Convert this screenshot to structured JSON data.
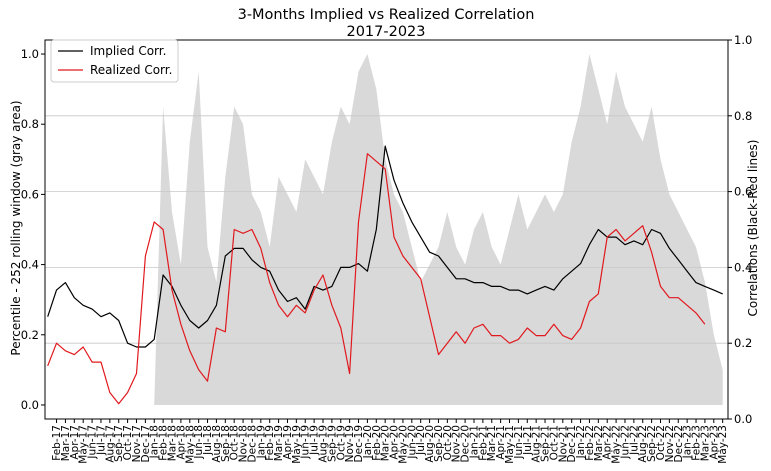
{
  "chart_data": {
    "type": "line",
    "title": "3-Months Implied vs Realized Correlation",
    "subtitle": "2017-2023",
    "ylabel_left": "Percentile - 252 rolling window (gray area)",
    "ylabel_right": "Correlations (Black-Red lines)",
    "ylim_left": [
      -0.04,
      1.04
    ],
    "ylim_right": [
      0.0,
      1.0
    ],
    "yticks_left": [
      "0.0",
      "0.2",
      "0.4",
      "0.6",
      "0.8",
      "1.0"
    ],
    "yticks_right": [
      "0.0",
      "0.2",
      "0.4",
      "0.6",
      "0.8",
      "1.0"
    ],
    "grid": "right-axis horizontal",
    "legend": {
      "placement": "top-left",
      "entries": [
        "Implied Corr.",
        "Realized Corr."
      ]
    },
    "colors": {
      "implied": "#000000",
      "realized": "#e0191e",
      "percentile_area": "#d9d9d9",
      "grid": "#c8c8c8"
    },
    "x_ticks": [
      "Feb-17",
      "Mar-17",
      "Apr-17",
      "May-17",
      "Jun-17",
      "Jul-17",
      "Aug-17",
      "Sep-17",
      "Oct-17",
      "Nov-17",
      "Dec-17",
      "Jan-18",
      "Feb-18",
      "Mar-18",
      "Apr-18",
      "May-18",
      "Jun-18",
      "Jul-18",
      "Aug-18",
      "Sep-18",
      "Oct-18",
      "Nov-18",
      "Dec-18",
      "Jan-19",
      "Feb-19",
      "Mar-19",
      "Apr-19",
      "May-19",
      "Jun-19",
      "Jul-19",
      "Aug-19",
      "Sep-19",
      "Oct-19",
      "Nov-19",
      "Dec-19",
      "Jan-20",
      "Feb-20",
      "Mar-20",
      "Apr-20",
      "May-20",
      "Jun-20",
      "Jul-20",
      "Aug-20",
      "Sep-20",
      "Oct-20",
      "Nov-20",
      "Dec-20",
      "Jan-21",
      "Feb-21",
      "Mar-21",
      "Apr-21",
      "May-21",
      "Jun-21",
      "Jul-21",
      "Aug-21",
      "Sep-21",
      "Oct-21",
      "Nov-21",
      "Dec-21",
      "Jan-22",
      "Feb-22",
      "Mar-22",
      "Apr-22",
      "May-22",
      "Jun-22",
      "Jul-22",
      "Aug-22",
      "Sep-22",
      "Oct-22",
      "Nov-22",
      "Dec-22",
      "Jan-23",
      "Feb-23",
      "Mar-23",
      "Apr-23",
      "May-23"
    ],
    "series": [
      {
        "name": "Implied Corr.",
        "axis": "right",
        "x": [
          "Jan-17",
          "Feb-17",
          "Mar-17",
          "Apr-17",
          "May-17",
          "Jun-17",
          "Jul-17",
          "Aug-17",
          "Sep-17",
          "Oct-17",
          "Nov-17",
          "Dec-17",
          "Jan-18",
          "Feb-18",
          "Mar-18",
          "Apr-18",
          "May-18",
          "Jun-18",
          "Jul-18",
          "Aug-18",
          "Sep-18",
          "Oct-18",
          "Nov-18",
          "Dec-18",
          "Jan-19",
          "Feb-19",
          "Mar-19",
          "Apr-19",
          "May-19",
          "Jun-19",
          "Jul-19",
          "Aug-19",
          "Sep-19",
          "Oct-19",
          "Nov-19",
          "Dec-19",
          "Jan-20",
          "Feb-20",
          "Mar-20",
          "Apr-20",
          "May-20",
          "Jun-20",
          "Jul-20",
          "Aug-20",
          "Sep-20",
          "Oct-20",
          "Nov-20",
          "Dec-20",
          "Jan-21",
          "Feb-21",
          "Mar-21",
          "Apr-21",
          "May-21",
          "Jun-21",
          "Jul-21",
          "Aug-21",
          "Sep-21",
          "Oct-21",
          "Nov-21",
          "Dec-21",
          "Jan-22",
          "Feb-22",
          "Mar-22",
          "Apr-22",
          "May-22",
          "Jun-22",
          "Jul-22",
          "Aug-22",
          "Sep-22",
          "Oct-22",
          "Nov-22",
          "Dec-22",
          "Jan-23",
          "Feb-23",
          "Mar-23",
          "Apr-23",
          "May-23"
        ],
        "values": [
          0.27,
          0.34,
          0.36,
          0.32,
          0.3,
          0.29,
          0.27,
          0.28,
          0.26,
          0.2,
          0.19,
          0.19,
          0.21,
          0.38,
          0.35,
          0.3,
          0.26,
          0.24,
          0.26,
          0.3,
          0.43,
          0.45,
          0.45,
          0.42,
          0.4,
          0.39,
          0.34,
          0.31,
          0.32,
          0.29,
          0.35,
          0.34,
          0.35,
          0.4,
          0.4,
          0.41,
          0.39,
          0.5,
          0.72,
          0.63,
          0.57,
          0.52,
          0.48,
          0.44,
          0.43,
          0.4,
          0.37,
          0.37,
          0.36,
          0.36,
          0.35,
          0.35,
          0.34,
          0.34,
          0.33,
          0.34,
          0.35,
          0.34,
          0.37,
          0.39,
          0.41,
          0.46,
          0.5,
          0.48,
          0.48,
          0.46,
          0.47,
          0.46,
          0.5,
          0.49,
          0.45,
          0.42,
          0.39,
          0.36,
          0.35,
          0.34,
          0.33
        ]
      },
      {
        "name": "Realized Corr.",
        "axis": "right",
        "x": [
          "Jan-17",
          "Feb-17",
          "Mar-17",
          "Apr-17",
          "May-17",
          "Jun-17",
          "Jul-17",
          "Aug-17",
          "Sep-17",
          "Oct-17",
          "Nov-17",
          "Dec-17",
          "Jan-18",
          "Feb-18",
          "Mar-18",
          "Apr-18",
          "May-18",
          "Jun-18",
          "Jul-18",
          "Aug-18",
          "Sep-18",
          "Oct-18",
          "Nov-18",
          "Dec-18",
          "Jan-19",
          "Feb-19",
          "Mar-19",
          "Apr-19",
          "May-19",
          "Jun-19",
          "Jul-19",
          "Aug-19",
          "Sep-19",
          "Oct-19",
          "Nov-19",
          "Dec-19",
          "Jan-20",
          "Feb-20",
          "Mar-20",
          "Apr-20",
          "May-20",
          "Jun-20",
          "Jul-20",
          "Aug-20",
          "Sep-20",
          "Oct-20",
          "Nov-20",
          "Dec-20",
          "Jan-21",
          "Feb-21",
          "Mar-21",
          "Apr-21",
          "May-21",
          "Jun-21",
          "Jul-21",
          "Aug-21",
          "Sep-21",
          "Oct-21",
          "Nov-21",
          "Dec-21",
          "Jan-22",
          "Feb-22",
          "Mar-22",
          "Apr-22",
          "May-22",
          "Jun-22",
          "Jul-22",
          "Aug-22",
          "Sep-22",
          "Oct-22",
          "Nov-22",
          "Dec-22",
          "Jan-23",
          "Feb-23",
          "Mar-23"
        ],
        "values": [
          0.14,
          0.2,
          0.18,
          0.17,
          0.19,
          0.15,
          0.15,
          0.07,
          0.04,
          0.07,
          0.12,
          0.43,
          0.52,
          0.5,
          0.34,
          0.25,
          0.18,
          0.13,
          0.1,
          0.24,
          0.23,
          0.5,
          0.49,
          0.5,
          0.45,
          0.36,
          0.3,
          0.27,
          0.3,
          0.28,
          0.34,
          0.38,
          0.3,
          0.24,
          0.12,
          0.52,
          0.7,
          0.68,
          0.66,
          0.48,
          0.43,
          0.4,
          0.37,
          0.27,
          0.17,
          0.2,
          0.23,
          0.2,
          0.24,
          0.25,
          0.22,
          0.22,
          0.2,
          0.21,
          0.24,
          0.22,
          0.22,
          0.25,
          0.22,
          0.21,
          0.24,
          0.31,
          0.33,
          0.48,
          0.5,
          0.47,
          0.49,
          0.51,
          0.44,
          0.35,
          0.32,
          0.32,
          0.3,
          0.28,
          0.25
        ]
      },
      {
        "name": "",
        "axis": "left",
        "x": [
          "Jan-18",
          "Feb-18",
          "Mar-18",
          "Apr-18",
          "May-18",
          "Jun-18",
          "Jul-18",
          "Aug-18",
          "Sep-18",
          "Oct-18",
          "Nov-18",
          "Dec-18",
          "Jan-19",
          "Feb-19",
          "Mar-19",
          "Apr-19",
          "May-19",
          "Jun-19",
          "Jul-19",
          "Aug-19",
          "Sep-19",
          "Oct-19",
          "Nov-19",
          "Dec-19",
          "Jan-20",
          "Feb-20",
          "Mar-20",
          "Apr-20",
          "May-20",
          "Jun-20",
          "Jul-20",
          "Aug-20",
          "Sep-20",
          "Oct-20",
          "Nov-20",
          "Dec-20",
          "Jan-21",
          "Feb-21",
          "Mar-21",
          "Apr-21",
          "May-21",
          "Jun-21",
          "Jul-21",
          "Aug-21",
          "Sep-21",
          "Oct-21",
          "Nov-21",
          "Dec-21",
          "Jan-22",
          "Feb-22",
          "Mar-22",
          "Apr-22",
          "May-22",
          "Jun-22",
          "Jul-22",
          "Aug-22",
          "Sep-22",
          "Oct-22",
          "Nov-22",
          "Dec-22",
          "Jan-23",
          "Feb-23",
          "Mar-23",
          "Apr-23",
          "May-23"
        ],
        "values": [
          0.0,
          0.85,
          0.55,
          0.4,
          0.75,
          0.95,
          0.45,
          0.35,
          0.65,
          0.85,
          0.8,
          0.6,
          0.55,
          0.45,
          0.65,
          0.6,
          0.55,
          0.7,
          0.65,
          0.6,
          0.75,
          0.85,
          0.8,
          0.95,
          1.0,
          0.9,
          0.7,
          0.6,
          0.55,
          0.45,
          0.35,
          0.4,
          0.45,
          0.55,
          0.45,
          0.4,
          0.5,
          0.55,
          0.45,
          0.4,
          0.5,
          0.6,
          0.5,
          0.55,
          0.6,
          0.55,
          0.6,
          0.75,
          0.85,
          1.0,
          0.9,
          0.8,
          0.95,
          0.85,
          0.8,
          0.75,
          0.85,
          0.7,
          0.6,
          0.55,
          0.5,
          0.45,
          0.35,
          0.2,
          0.1
        ]
      }
    ]
  }
}
